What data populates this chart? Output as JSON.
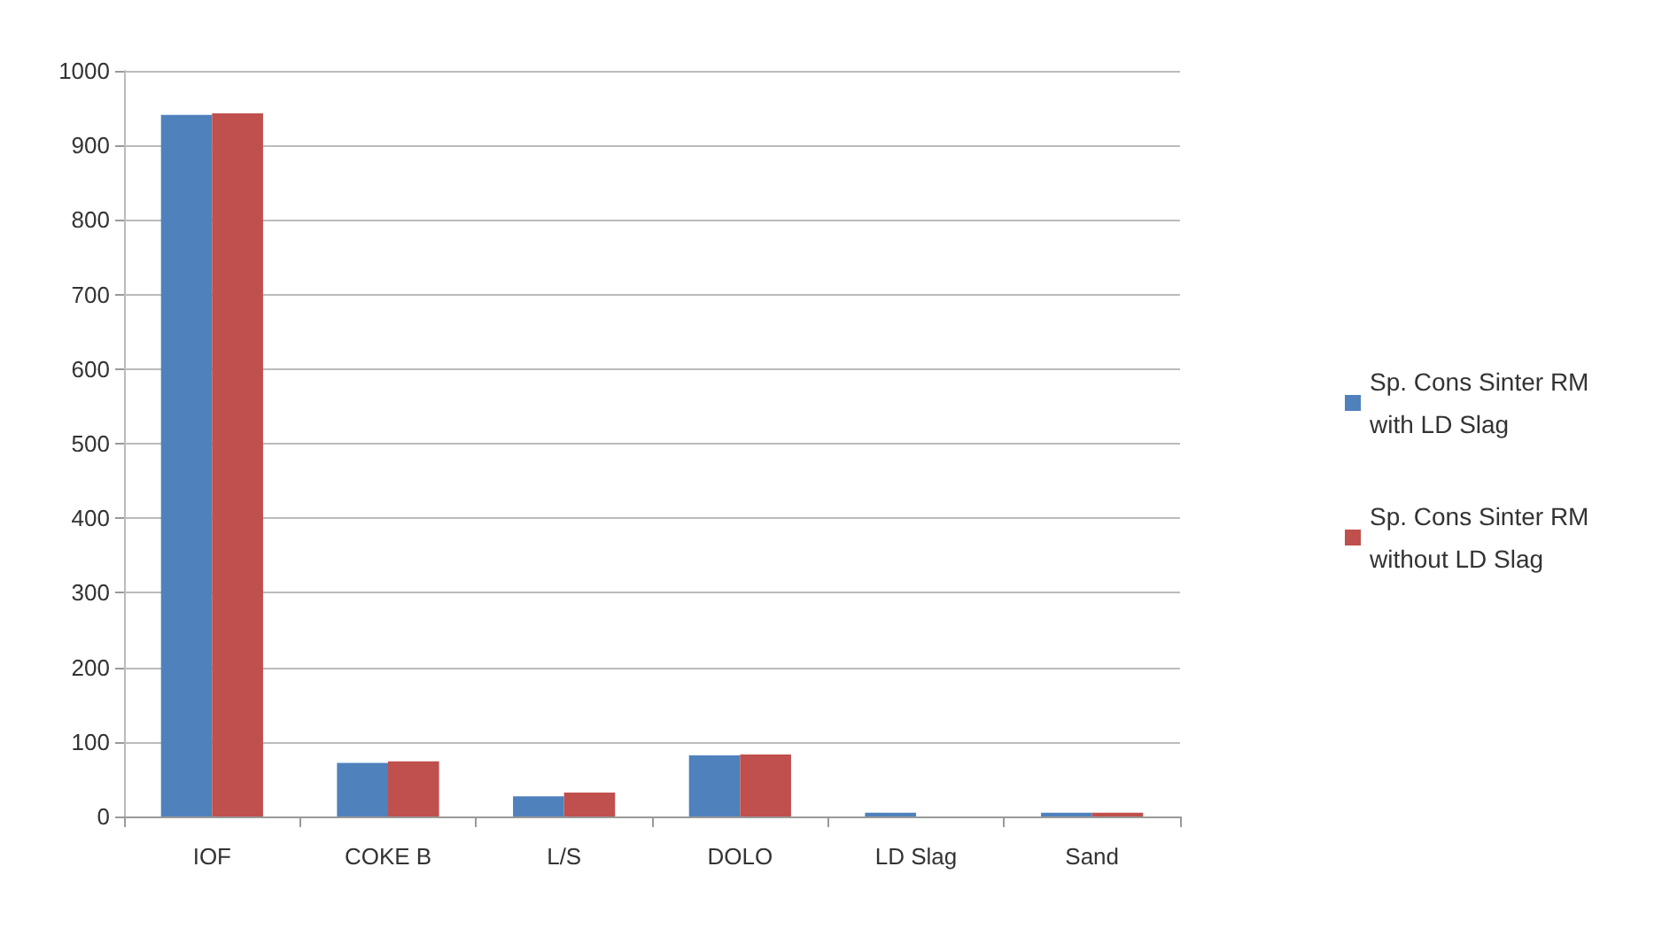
{
  "chart_data": {
    "type": "bar",
    "categories": [
      "IOF",
      "COKE B",
      "L/S",
      "DOLO",
      "LD Slag",
      "Sand"
    ],
    "series": [
      {
        "name": "Sp. Cons Sinter RM with LD Slag",
        "color": "#4f81bd",
        "values": [
          941,
          72,
          27,
          82,
          5,
          5
        ]
      },
      {
        "name": "Sp. Cons Sinter RM without LD Slag",
        "color": "#c0504d",
        "values": [
          943,
          74,
          32,
          83,
          null,
          5
        ]
      }
    ],
    "ylim": [
      0,
      1000
    ],
    "yticks": [
      0,
      100,
      200,
      300,
      400,
      500,
      600,
      700,
      800,
      900,
      1000
    ],
    "grid": "y",
    "legend": "right"
  }
}
